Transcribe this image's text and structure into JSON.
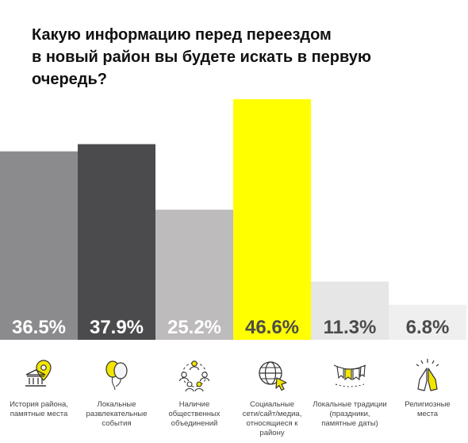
{
  "title_lines": [
    "Какую информацию перед переездом",
    "в новый район вы будете искать в первую",
    "очередь?"
  ],
  "colors": {
    "bar_1": "#8b8b8e",
    "bar_2": "#4b4b4d",
    "bar_3": "#bdbbbc",
    "bar_4": "#ffff00",
    "bar_5": "#e6e6e6",
    "bar_6": "#efefef",
    "label_light": "#ffffff",
    "label_dark": "#4b4b4d",
    "icon_accent": "#f2e600",
    "icon_stroke": "#333333"
  },
  "chart_data": {
    "type": "bar",
    "title": "Какую информацию перед переездом в новый район вы будете искать в первую очередь?",
    "categories": [
      "История района, памятные места",
      "Локальные развлекательные события",
      "Наличие общественных объединений",
      "Социальные сети/сайт/медиа, относящиеся к району",
      "Локальные традиции (праздники, памятные даты)",
      "Религиозные места"
    ],
    "values": [
      36.5,
      37.9,
      25.2,
      46.6,
      11.3,
      6.8
    ],
    "value_labels": [
      "36.5%",
      "37.9%",
      "25.2%",
      "46.6%",
      "11.3%",
      "6.8%"
    ],
    "ylim": [
      0,
      46.6
    ],
    "grid": false,
    "legend": "none"
  },
  "categories_display": [
    {
      "icon": "museum-pin-icon",
      "lines": [
        "История района,",
        "памятные места"
      ]
    },
    {
      "icon": "balloons-icon",
      "lines": [
        "Локальные",
        "развлекательные",
        "события"
      ]
    },
    {
      "icon": "community-group-icon",
      "lines": [
        "Наличие",
        "общественных",
        "объединений"
      ]
    },
    {
      "icon": "globe-cursor-icon",
      "lines": [
        "Социальные",
        "сети/сайт/медиа,",
        "относящиеся к району"
      ]
    },
    {
      "icon": "bunting-flags-icon",
      "lines": [
        "Локальные традиции",
        "(праздники,",
        "памятные даты)"
      ]
    },
    {
      "icon": "praying-hands-icon",
      "lines": [
        "Религиозные",
        "места"
      ]
    }
  ]
}
